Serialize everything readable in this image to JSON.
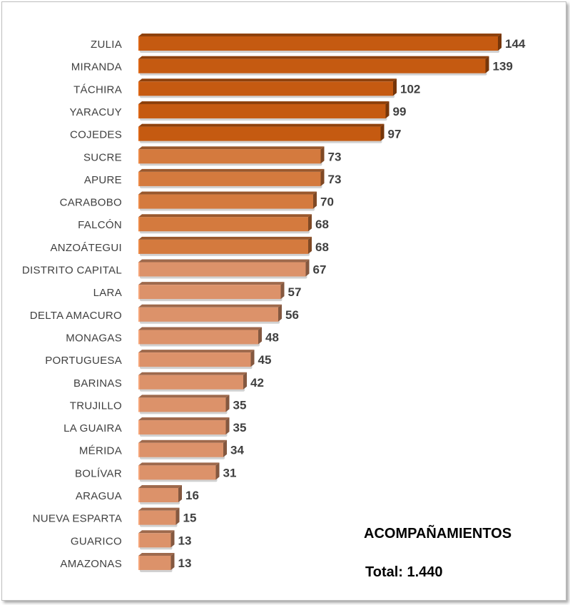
{
  "chart_data": {
    "type": "bar",
    "orientation": "horizontal",
    "categories": [
      "ZULIA",
      "MIRANDA",
      "TÁCHIRA",
      "YARACUY",
      "COJEDES",
      "SUCRE",
      "APURE",
      "CARABOBO",
      "FALCÓN",
      "ANZOÁTEGUI",
      "DISTRITO CAPITAL",
      "LARA",
      "DELTA AMACURO",
      "MONAGAS",
      "PORTUGUESA",
      "BARINAS",
      "TRUJILLO",
      "LA GUAIRA",
      "MÉRIDA",
      "BOLÍVAR",
      "ARAGUA",
      "NUEVA ESPARTA",
      "GUARICO",
      "AMAZONAS"
    ],
    "values": [
      144,
      139,
      102,
      99,
      97,
      73,
      73,
      70,
      68,
      68,
      67,
      57,
      56,
      48,
      45,
      42,
      35,
      35,
      34,
      31,
      16,
      15,
      13,
      13
    ],
    "data_labels": true,
    "colors": {
      "dark": "#c55a11",
      "mid": "#d47a3e",
      "light": "#dc926a"
    },
    "color_groups": [
      "dark",
      "dark",
      "dark",
      "dark",
      "dark",
      "mid",
      "mid",
      "mid",
      "mid",
      "mid",
      "light",
      "light",
      "light",
      "light",
      "light",
      "light",
      "light",
      "light",
      "light",
      "light",
      "light",
      "light",
      "light",
      "light"
    ],
    "annotation_title": "ACOMPAÑAMIENTOS",
    "annotation_total": "Total: 1.440"
  }
}
